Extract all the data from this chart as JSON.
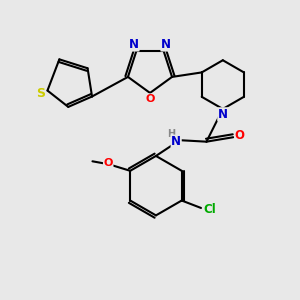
{
  "bg_color": "#e8e8e8",
  "bond_color": "#000000",
  "bond_width": 1.5,
  "atom_colors": {
    "N": "#0000cc",
    "O": "#ff0000",
    "S": "#cccc00",
    "Cl": "#00aa00",
    "H": "#888888"
  },
  "font_size": 8.5
}
